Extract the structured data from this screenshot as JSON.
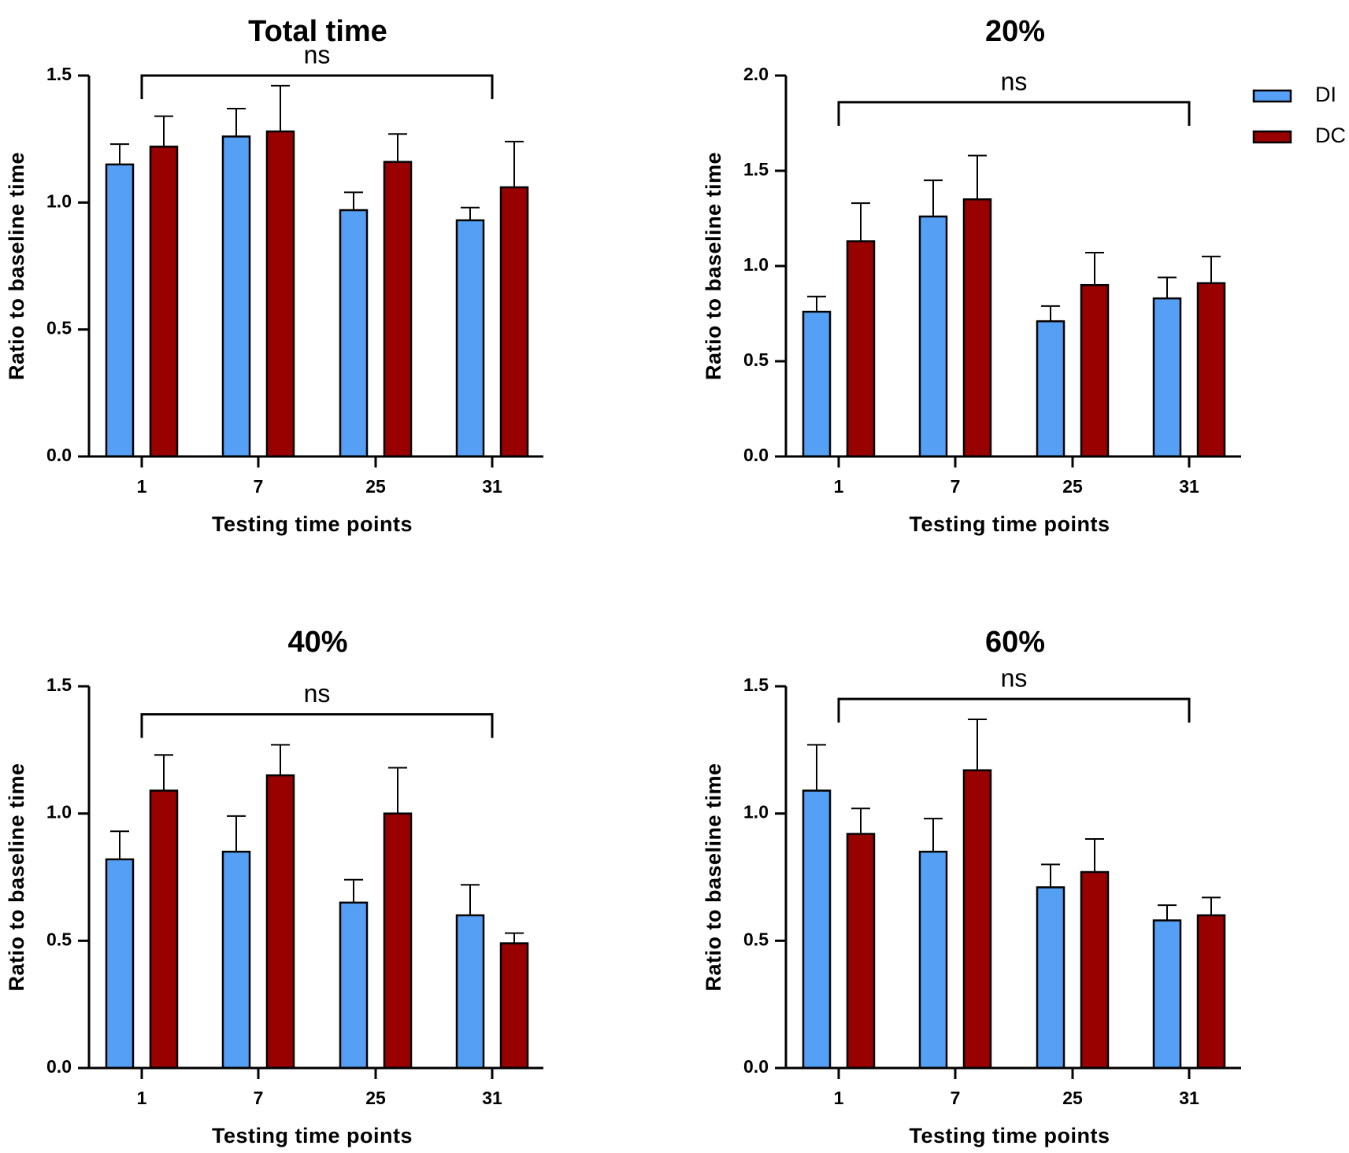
{
  "legend": {
    "items": [
      {
        "label": "DI",
        "color": "#55A0F5"
      },
      {
        "label": "DC",
        "color": "#990000"
      }
    ]
  },
  "chart_data": [
    {
      "type": "bar",
      "title": "Total time",
      "xlabel": "Testing time points",
      "ylabel": "Ratio to baseline time",
      "ylim": [
        0,
        1.5
      ],
      "yticks": [
        "0.0",
        "0.5",
        "1.0",
        "1.5"
      ],
      "categories": [
        "1",
        "7",
        "25",
        "31"
      ],
      "series": [
        {
          "name": "DI",
          "color": "#55A0F5",
          "values": [
            1.15,
            1.26,
            0.97,
            0.93
          ],
          "errors": [
            0.08,
            0.11,
            0.07,
            0.05
          ]
        },
        {
          "name": "DC",
          "color": "#990000",
          "values": [
            1.22,
            1.28,
            1.16,
            1.06
          ],
          "errors": [
            0.12,
            0.18,
            0.11,
            0.18
          ]
        }
      ],
      "annotation": {
        "text": "ns",
        "from": "1",
        "to": "31",
        "y": 1.5
      }
    },
    {
      "type": "bar",
      "title": "20%",
      "xlabel": "Testing time points",
      "ylabel": "Ratio to baseline time",
      "ylim": [
        0,
        2.0
      ],
      "yticks": [
        "0.0",
        "0.5",
        "1.0",
        "1.5",
        "2.0"
      ],
      "categories": [
        "1",
        "7",
        "25",
        "31"
      ],
      "series": [
        {
          "name": "DI",
          "color": "#55A0F5",
          "values": [
            0.76,
            1.26,
            0.71,
            0.83
          ],
          "errors": [
            0.08,
            0.19,
            0.08,
            0.11
          ]
        },
        {
          "name": "DC",
          "color": "#990000",
          "values": [
            1.13,
            1.35,
            0.9,
            0.91
          ],
          "errors": [
            0.2,
            0.23,
            0.17,
            0.14
          ]
        }
      ],
      "annotation": {
        "text": "ns",
        "from": "1",
        "to": "31",
        "y": 1.86
      }
    },
    {
      "type": "bar",
      "title": "40%",
      "xlabel": "Testing time points",
      "ylabel": "Ratio to baseline time",
      "ylim": [
        0,
        1.5
      ],
      "yticks": [
        "0.0",
        "0.5",
        "1.0",
        "1.5"
      ],
      "categories": [
        "1",
        "7",
        "25",
        "31"
      ],
      "series": [
        {
          "name": "DI",
          "color": "#55A0F5",
          "values": [
            0.82,
            0.85,
            0.65,
            0.6
          ],
          "errors": [
            0.11,
            0.14,
            0.09,
            0.12
          ]
        },
        {
          "name": "DC",
          "color": "#990000",
          "values": [
            1.09,
            1.15,
            1.0,
            0.49
          ],
          "errors": [
            0.14,
            0.12,
            0.18,
            0.04
          ]
        }
      ],
      "annotation": {
        "text": "ns",
        "from": "1",
        "to": "31",
        "y": 1.39
      }
    },
    {
      "type": "bar",
      "title": "60%",
      "xlabel": "Testing time points",
      "ylabel": "Ratio to baseline time",
      "ylim": [
        0,
        1.5
      ],
      "yticks": [
        "0.0",
        "0.5",
        "1.0",
        "1.5"
      ],
      "categories": [
        "1",
        "7",
        "25",
        "31"
      ],
      "series": [
        {
          "name": "DI",
          "color": "#55A0F5",
          "values": [
            1.09,
            0.85,
            0.71,
            0.58
          ],
          "errors": [
            0.18,
            0.13,
            0.09,
            0.06
          ]
        },
        {
          "name": "DC",
          "color": "#990000",
          "values": [
            0.92,
            1.17,
            0.77,
            0.6
          ],
          "errors": [
            0.1,
            0.2,
            0.13,
            0.07
          ]
        }
      ],
      "annotation": {
        "text": "ns",
        "from": "1",
        "to": "31",
        "y": 1.45
      }
    }
  ]
}
